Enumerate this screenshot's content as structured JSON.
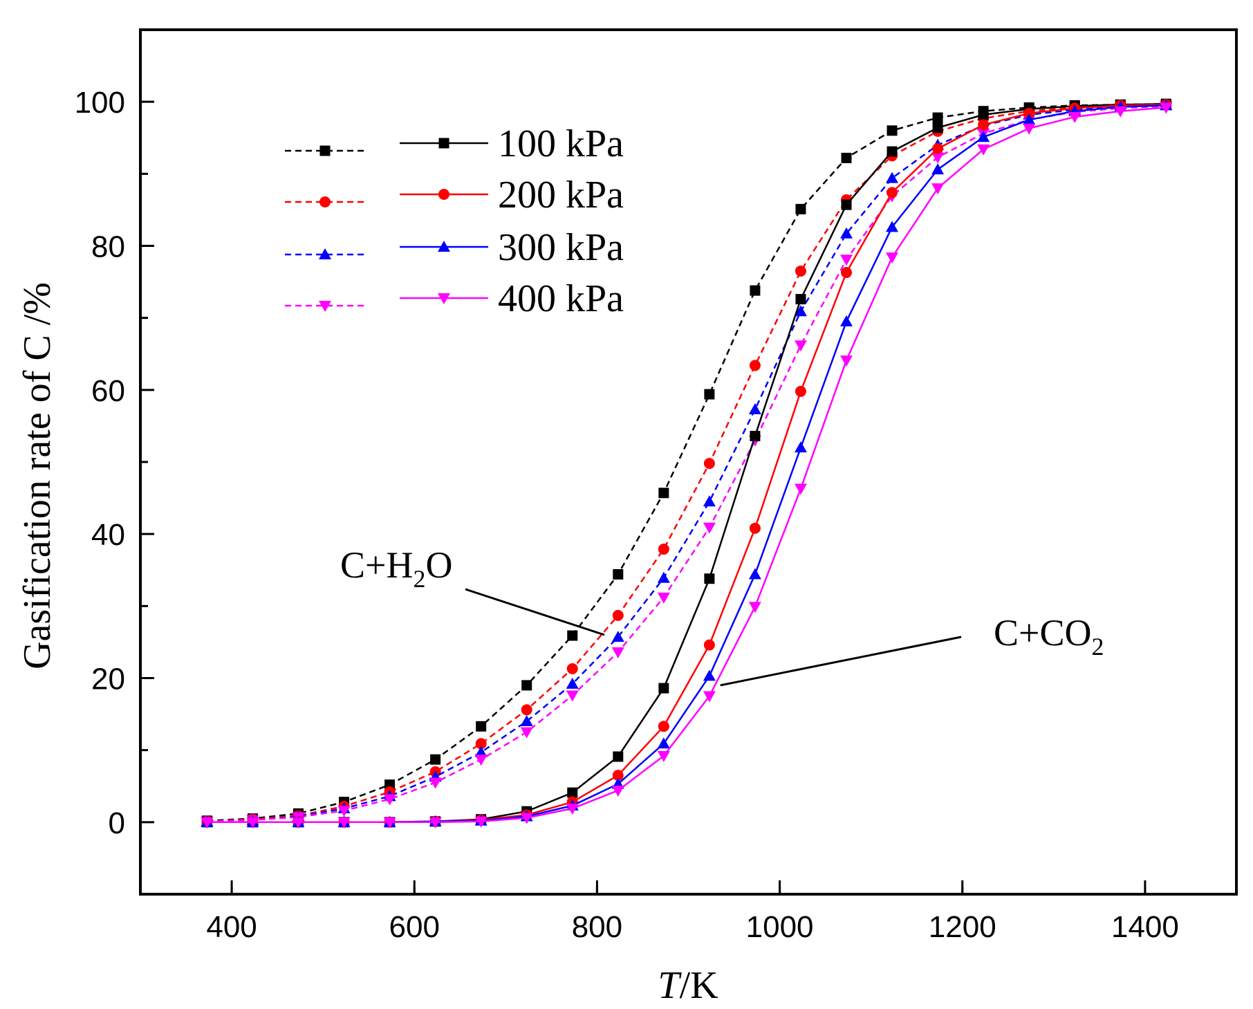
{
  "chart_data": {
    "type": "line",
    "title": "",
    "xlabel": {
      "italic": "T",
      "rest": "/K"
    },
    "ylabel": "Gasification rate of C /%",
    "xlim": [
      300,
      1500
    ],
    "ylim": [
      -10,
      110
    ],
    "xticks": [
      400,
      600,
      800,
      1000,
      1200,
      1400
    ],
    "yticks": [
      0,
      20,
      40,
      60,
      80,
      100
    ],
    "grid": false,
    "x": [
      373,
      423,
      473,
      523,
      573,
      623,
      673,
      723,
      773,
      823,
      873,
      923,
      973,
      1023,
      1073,
      1123,
      1173,
      1223,
      1273,
      1323,
      1373,
      1423
    ],
    "series": [
      {
        "name": "C+H2O 100 kPa",
        "reaction": "C+H2O",
        "pressure": "100 kPa",
        "style": "dashed",
        "marker": "square",
        "color": "#000000",
        "values": [
          0.2,
          0.5,
          1.2,
          2.8,
          5.2,
          8.7,
          13.3,
          19.0,
          25.9,
          34.4,
          45.7,
          59.4,
          73.8,
          85.1,
          92.2,
          96.0,
          97.8,
          98.7,
          99.2,
          99.5,
          99.6,
          99.7
        ]
      },
      {
        "name": "C+H2O 200 kPa",
        "reaction": "C+H2O",
        "pressure": "200 kPa",
        "style": "dashed",
        "marker": "circle",
        "color": "#ff0000",
        "values": [
          0.1,
          0.4,
          0.9,
          2.2,
          4.2,
          7.0,
          10.9,
          15.6,
          21.3,
          28.7,
          37.9,
          49.8,
          63.4,
          76.5,
          86.4,
          92.5,
          95.9,
          97.7,
          98.7,
          99.2,
          99.5,
          99.6
        ]
      },
      {
        "name": "C+H2O 300 kPa",
        "reaction": "C+H2O",
        "pressure": "300 kPa",
        "style": "dashed",
        "marker": "triangle-up",
        "color": "#0000ff",
        "values": [
          0.1,
          0.3,
          0.8,
          1.9,
          3.6,
          6.3,
          9.7,
          14.0,
          19.2,
          25.7,
          33.9,
          44.5,
          57.3,
          70.9,
          81.7,
          89.4,
          94.0,
          96.7,
          98.2,
          98.9,
          99.3,
          99.5
        ]
      },
      {
        "name": "C+H2O 400 kPa",
        "reaction": "C+H2O",
        "pressure": "400 kPa",
        "style": "dashed",
        "marker": "triangle-down",
        "color": "#ff00ff",
        "values": [
          0.1,
          0.3,
          0.7,
          1.6,
          3.2,
          5.5,
          8.7,
          12.5,
          17.6,
          23.6,
          31.2,
          40.9,
          53.0,
          66.2,
          78.1,
          86.9,
          92.3,
          95.6,
          97.5,
          98.6,
          99.1,
          99.4
        ]
      },
      {
        "name": "C+CO2 100 kPa",
        "reaction": "C+CO2",
        "pressure": "100 kPa",
        "style": "solid",
        "marker": "square",
        "color": "#000000",
        "values": [
          0.0,
          0.0,
          0.0,
          0.0,
          0.0,
          0.1,
          0.4,
          1.5,
          4.1,
          9.1,
          18.6,
          33.8,
          53.6,
          72.6,
          85.7,
          93.1,
          96.4,
          98.2,
          99.0,
          99.4,
          99.6,
          99.7
        ]
      },
      {
        "name": "C+CO2 200 kPa",
        "reaction": "C+CO2",
        "pressure": "200 kPa",
        "style": "solid",
        "marker": "circle",
        "color": "#ff0000",
        "values": [
          0.0,
          0.0,
          0.0,
          0.0,
          0.0,
          0.1,
          0.3,
          1.0,
          2.8,
          6.5,
          13.3,
          24.6,
          40.8,
          59.8,
          76.3,
          87.4,
          93.5,
          96.8,
          98.4,
          99.1,
          99.5,
          99.6
        ]
      },
      {
        "name": "C+CO2 300 kPa",
        "reaction": "C+CO2",
        "pressure": "300 kPa",
        "style": "solid",
        "marker": "triangle-up",
        "color": "#0000ff",
        "values": [
          0.0,
          0.0,
          0.0,
          0.0,
          0.0,
          0.1,
          0.2,
          0.8,
          2.3,
          5.3,
          10.9,
          20.3,
          34.4,
          52.0,
          69.5,
          82.6,
          90.6,
          95.1,
          97.5,
          98.7,
          99.3,
          99.5
        ]
      },
      {
        "name": "C+CO2 400 kPa",
        "reaction": "C+CO2",
        "pressure": "400 kPa",
        "style": "solid",
        "marker": "triangle-down",
        "color": "#ff00ff",
        "values": [
          0.0,
          0.0,
          0.0,
          0.0,
          0.0,
          0.0,
          0.1,
          0.6,
          1.9,
          4.4,
          9.2,
          17.5,
          29.9,
          46.3,
          64.1,
          78.4,
          88.0,
          93.4,
          96.3,
          97.9,
          98.7,
          99.2
        ]
      }
    ],
    "legend": {
      "position": "top-left",
      "entries": [
        "100 kPa",
        "200 kPa",
        "300 kPa",
        "400 kPa"
      ]
    },
    "annotations": [
      {
        "id": "h2o",
        "base": "C+H",
        "sub": "2",
        "tail": "O",
        "points_to": "C+H2O",
        "arrow_target": [
          808,
          26
        ]
      },
      {
        "id": "co2",
        "base": "C+CO",
        "sub": "2",
        "tail": "",
        "points_to": "C+CO2",
        "arrow_target": [
          935,
          19
        ]
      }
    ]
  }
}
